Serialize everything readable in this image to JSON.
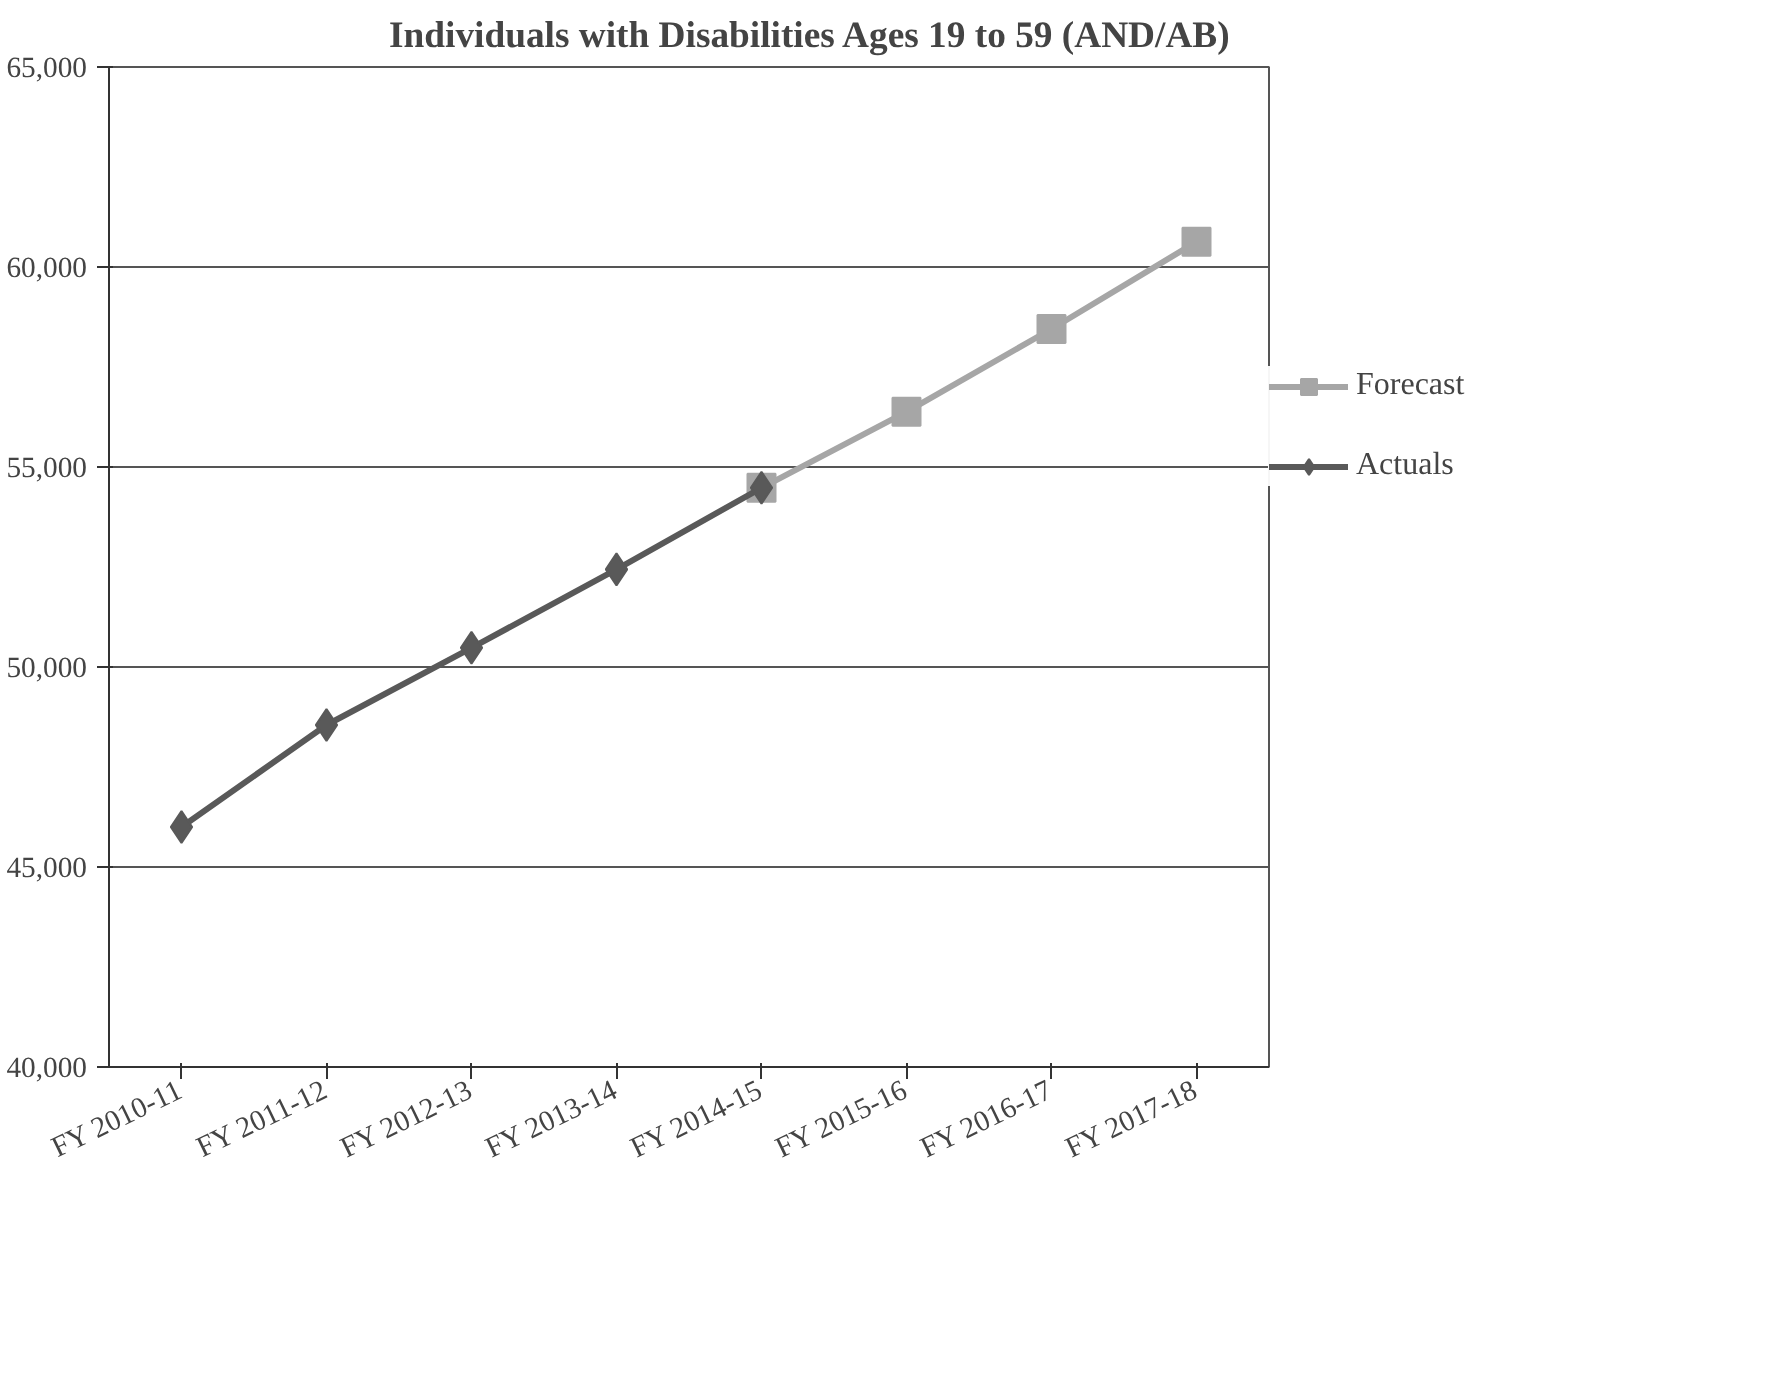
{
  "chart_data": {
    "type": "line",
    "title": "Individuals with Disabilities Ages 19 to 59  (AND/AB)",
    "categories": [
      "FY 2010-11",
      "FY 2011-12",
      "FY 2012-13",
      "FY 2013-14",
      "FY 2014-15",
      "FY 2015-16",
      "FY 2016-17",
      "FY 2017-18"
    ],
    "series": [
      {
        "name": "Forecast",
        "color": "#a6a6a6",
        "marker": "square",
        "values": [
          null,
          null,
          null,
          null,
          54480,
          56380,
          58450,
          60630
        ]
      },
      {
        "name": "Actuals",
        "color": "#595959",
        "marker": "diamond",
        "values": [
          46000,
          48550,
          50480,
          52440,
          54480,
          null,
          null,
          null
        ]
      }
    ],
    "ylim": [
      40000,
      65000
    ],
    "yticks": [
      {
        "value": 40000,
        "label": "40,000"
      },
      {
        "value": 45000,
        "label": "45,000"
      },
      {
        "value": 50000,
        "label": "50,000"
      },
      {
        "value": 55000,
        "label": "55,000"
      },
      {
        "value": 60000,
        "label": "60,000"
      },
      {
        "value": 65000,
        "label": "65,000"
      }
    ],
    "grid": "y",
    "legend": "right",
    "line_style": "solid"
  }
}
